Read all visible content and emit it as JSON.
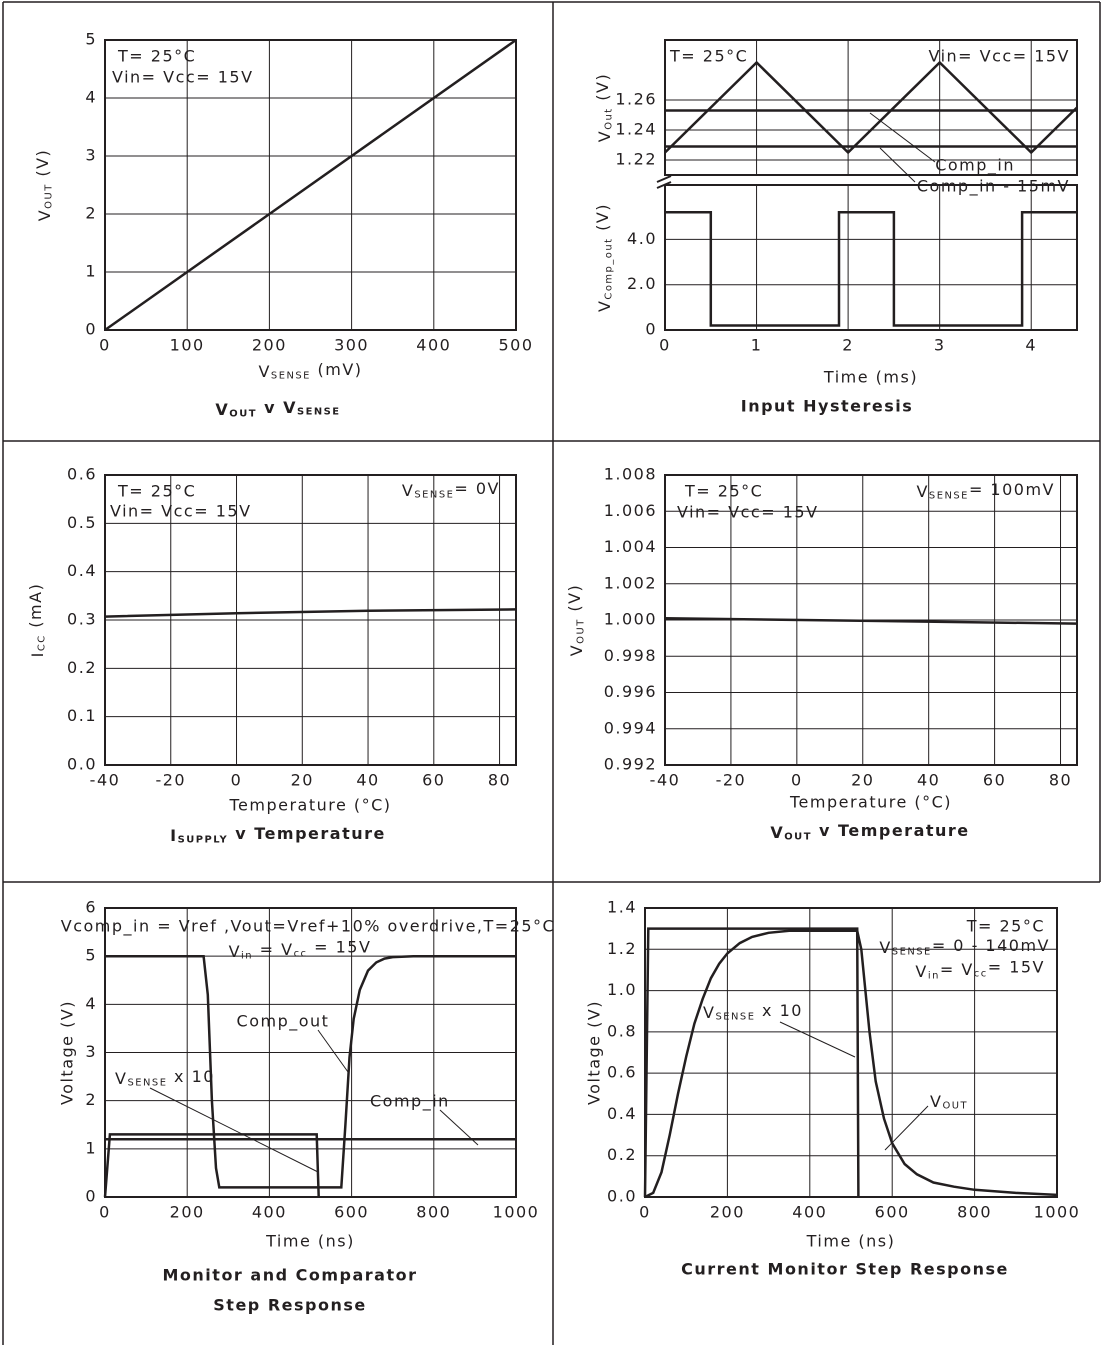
{
  "chart_data": [
    {
      "type": "line",
      "title": [
        "V",
        "OUT",
        " v V",
        "SENSE"
      ],
      "x_label": [
        "V",
        "SENSE",
        " (mV)"
      ],
      "y_label": [
        "V",
        "OUT",
        " (V)"
      ],
      "annotations": [
        "T= 25°C",
        "Vin= Vcc= 15V"
      ],
      "xlim": [
        0,
        500
      ],
      "xticks": [
        0,
        100,
        200,
        300,
        400,
        500
      ],
      "ylim": [
        0,
        5
      ],
      "yticks": [
        0,
        1,
        2,
        3,
        4,
        5
      ],
      "grid": true,
      "series": [
        {
          "color": "#231f20",
          "x": [
            0,
            500
          ],
          "values": [
            0,
            5
          ]
        }
      ]
    },
    {
      "type": "line",
      "title": "Input Hysteresis",
      "x_label": "Time (ms)",
      "annotations": [
        "T= 25°C",
        "Vin= Vcc= 15V",
        "Comp_in",
        "Comp_in - 15mV"
      ],
      "xlim": [
        0,
        4.5
      ],
      "xticks": [
        0,
        1,
        2,
        3,
        4
      ],
      "grid": true,
      "panels": [
        {
          "y_label": [
            "V",
            "Out",
            " (V)"
          ],
          "ylim": [
            1.21,
            1.3
          ],
          "yticks": [
            1.22,
            1.24,
            1.26
          ],
          "series": [
            {
              "color": "#231f20",
              "x": [
                0,
                1,
                2,
                3,
                4,
                4.5
              ],
              "values": [
                1.225,
                1.285,
                1.225,
                1.285,
                1.225,
                1.255
              ]
            },
            {
              "color": "#231f20",
              "x": [
                0,
                4.5
              ],
              "values": [
                1.253,
                1.253
              ]
            },
            {
              "color": "#231f20",
              "x": [
                0,
                4.5
              ],
              "values": [
                1.229,
                1.229
              ]
            }
          ]
        },
        {
          "y_label": [
            "V",
            "Comp_out",
            " (V)"
          ],
          "ylim": [
            0,
            6.4
          ],
          "yticks": [
            0,
            {
              "value": 2,
              "label": "2.0"
            },
            {
              "value": 4,
              "label": "4.0"
            }
          ],
          "series": [
            {
              "color": "#231f20",
              "x": [
                0,
                0.5,
                0.5,
                1.9,
                1.9,
                2.5,
                2.5,
                3.9,
                3.9,
                4.5
              ],
              "values": [
                5.2,
                5.2,
                0.2,
                0.2,
                5.2,
                5.2,
                0.2,
                0.2,
                5.2,
                5.2
              ]
            }
          ]
        }
      ]
    },
    {
      "type": "line",
      "title": [
        "I",
        "SUPPLY",
        " v Temperature"
      ],
      "x_label": "Temperature (°C)",
      "y_label": [
        "I",
        "CC",
        " (mA)"
      ],
      "annotations": [
        "T= 25°C",
        "Vin= Vcc= 15V",
        [
          "V",
          "SENSE",
          "= 0V"
        ]
      ],
      "xlim": [
        -40,
        85
      ],
      "xticks": [
        -40,
        -20,
        0,
        20,
        40,
        60,
        80
      ],
      "ylim": [
        0,
        0.6
      ],
      "yticks": [
        {
          "value": 0,
          "label": "0.0"
        },
        0.1,
        0.2,
        0.3,
        0.4,
        0.5,
        0.6
      ],
      "grid": true,
      "series": [
        {
          "color": "#231f20",
          "x": [
            -40,
            0,
            40,
            85
          ],
          "values": [
            0.307,
            0.314,
            0.319,
            0.322
          ]
        }
      ]
    },
    {
      "type": "line",
      "title": [
        "V",
        "OUT",
        " v Temperature"
      ],
      "x_label": "Temperature (°C)",
      "y_label": [
        "V",
        "OUT",
        " (V)"
      ],
      "annotations": [
        "T= 25°C",
        "Vin= Vcc= 15V",
        [
          "V",
          "SENSE",
          "= 100mV"
        ]
      ],
      "xlim": [
        -40,
        85
      ],
      "xticks": [
        -40,
        -20,
        0,
        20,
        40,
        60,
        80
      ],
      "ylim": [
        0.992,
        1.008
      ],
      "yticks": [
        0.992,
        0.994,
        0.996,
        0.998,
        {
          "value": 1,
          "label": "1.000"
        },
        1.002,
        1.004,
        1.006,
        1.008
      ],
      "grid": true,
      "series": [
        {
          "color": "#231f20",
          "x": [
            -40,
            85
          ],
          "values": [
            1.0001,
            0.9998
          ]
        }
      ]
    },
    {
      "type": "line",
      "title": "Monitor and Comparator",
      "subtitle": "Step Response",
      "x_label": "Time (ns)",
      "y_label": "Voltage (V)",
      "annotations": [
        "Vcomp_in = Vref ,Vout=Vref+10% overdrive,T=25°C",
        [
          "V",
          "in",
          " = V",
          "cc",
          " = 15V"
        ],
        "Comp_out",
        [
          "V",
          "SENSE",
          " x 10"
        ],
        "Comp_in"
      ],
      "xlim": [
        0,
        1000
      ],
      "xticks": [
        0,
        200,
        400,
        600,
        800,
        1000
      ],
      "ylim": [
        0,
        6
      ],
      "yticks": [
        0,
        1,
        2,
        3,
        4,
        5,
        6
      ],
      "grid": true,
      "series": [
        {
          "color": "#231f20",
          "x": [
            0,
            240,
            250,
            260,
            270,
            278,
            575,
            585,
            595,
            605,
            620,
            640,
            660,
            680,
            700,
            750,
            1000
          ],
          "values": [
            5,
            5,
            4.2,
            2.0,
            0.6,
            0.2,
            0.2,
            1.5,
            2.9,
            3.7,
            4.3,
            4.7,
            4.87,
            4.95,
            4.98,
            5,
            5
          ]
        },
        {
          "color": "#231f20",
          "x": [
            0,
            12,
            515,
            520
          ],
          "values": [
            0,
            1.3,
            1.3,
            0
          ]
        },
        {
          "color": "#231f20",
          "x": [
            0,
            1000
          ],
          "values": [
            1.2,
            1.2
          ]
        }
      ]
    },
    {
      "type": "line",
      "title": "Current Monitor Step Response",
      "x_label": "Time (ns)",
      "y_label": "Voltage (V)",
      "annotations": [
        "T= 25°C",
        [
          "V",
          "SENSE",
          "= 0 - 140mV"
        ],
        [
          "V",
          "in",
          "= V",
          "cc",
          "= 15V"
        ],
        [
          "V",
          "SENSE",
          " x 10"
        ],
        [
          "V",
          "OUT"
        ]
      ],
      "xlim": [
        0,
        1000
      ],
      "xticks": [
        0,
        200,
        400,
        600,
        800,
        1000
      ],
      "ylim": [
        0,
        1.4
      ],
      "yticks": [
        {
          "value": 0,
          "label": "0.0"
        },
        0.2,
        0.4,
        0.6,
        0.8,
        {
          "value": 1,
          "label": "1.0"
        },
        1.2,
        1.4
      ],
      "grid": true,
      "series": [
        {
          "color": "#231f20",
          "x": [
            0,
            8,
            515,
            518
          ],
          "values": [
            0,
            1.3,
            1.3,
            0
          ]
        },
        {
          "color": "#231f20",
          "x": [
            0,
            20,
            40,
            60,
            80,
            100,
            120,
            140,
            160,
            180,
            200,
            230,
            260,
            300,
            350,
            400,
            450,
            515,
            525,
            535,
            545,
            560,
            580,
            600,
            630,
            660,
            700,
            750,
            800,
            900,
            1000
          ],
          "values": [
            0,
            0.02,
            0.12,
            0.3,
            0.5,
            0.68,
            0.84,
            0.96,
            1.06,
            1.13,
            1.18,
            1.23,
            1.26,
            1.28,
            1.29,
            1.29,
            1.29,
            1.29,
            1.2,
            1.0,
            0.8,
            0.56,
            0.38,
            0.26,
            0.16,
            0.11,
            0.07,
            0.05,
            0.035,
            0.02,
            0.01
          ]
        }
      ]
    }
  ]
}
